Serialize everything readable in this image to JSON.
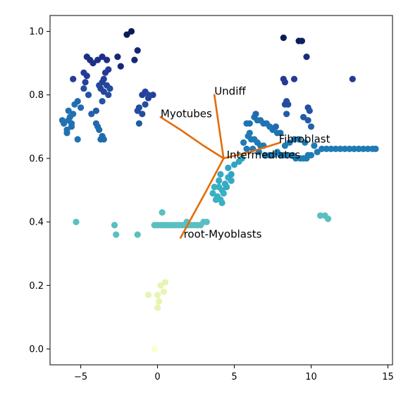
{
  "chart_data": {
    "type": "scatter",
    "title": "",
    "xlabel": "",
    "ylabel": "",
    "xlim": [
      -7.0,
      15.3
    ],
    "ylim": [
      -0.05,
      1.05
    ],
    "grid": false,
    "legend": "none",
    "x_ticks": [
      {
        "value": -5,
        "label": "−5"
      },
      {
        "value": 0,
        "label": "0"
      },
      {
        "value": 5,
        "label": "5"
      },
      {
        "value": 10,
        "label": "10"
      },
      {
        "value": 15,
        "label": "15"
      }
    ],
    "y_ticks": [
      {
        "value": 0.0,
        "label": "0.0"
      },
      {
        "value": 0.2,
        "label": "0.2"
      },
      {
        "value": 0.4,
        "label": "0.4"
      },
      {
        "value": 0.6,
        "label": "0.6"
      },
      {
        "value": 0.8,
        "label": "0.8"
      },
      {
        "value": 1.0,
        "label": "1.0"
      }
    ],
    "colormap": {
      "name": "YlGnBu",
      "range": [
        0,
        1
      ],
      "stops": [
        "#ffffd9",
        "#edf8b1",
        "#c7e9b4",
        "#7fcdbb",
        "#41b6c4",
        "#1d91c0",
        "#225ea8",
        "#253494",
        "#081d58"
      ]
    },
    "points": [
      {
        "x": -5.8,
        "y": 0.72,
        "v": 0.7
      },
      {
        "x": -6.1,
        "y": 0.71,
        "v": 0.7
      },
      {
        "x": -5.9,
        "y": 0.69,
        "v": 0.7
      },
      {
        "x": -5.6,
        "y": 0.7,
        "v": 0.7
      },
      {
        "x": -5.7,
        "y": 0.73,
        "v": 0.7
      },
      {
        "x": -5.5,
        "y": 0.74,
        "v": 0.7
      },
      {
        "x": -5.9,
        "y": 0.68,
        "v": 0.7
      },
      {
        "x": -5.4,
        "y": 0.77,
        "v": 0.7
      },
      {
        "x": -5.2,
        "y": 0.78,
        "v": 0.72
      },
      {
        "x": -5.0,
        "y": 0.76,
        "v": 0.72
      },
      {
        "x": -5.2,
        "y": 0.66,
        "v": 0.7
      },
      {
        "x": -5.8,
        "y": 0.75,
        "v": 0.7
      },
      {
        "x": -6.2,
        "y": 0.72,
        "v": 0.7
      },
      {
        "x": -5.6,
        "y": 0.71,
        "v": 0.7
      },
      {
        "x": -5.5,
        "y": 0.85,
        "v": 0.85
      },
      {
        "x": -4.8,
        "y": 0.82,
        "v": 0.8
      },
      {
        "x": -4.5,
        "y": 0.8,
        "v": 0.78
      },
      {
        "x": -4.7,
        "y": 0.84,
        "v": 0.84
      },
      {
        "x": -4.6,
        "y": 0.86,
        "v": 0.86
      },
      {
        "x": -4.8,
        "y": 0.87,
        "v": 0.86
      },
      {
        "x": -4.6,
        "y": 0.92,
        "v": 0.9
      },
      {
        "x": -4.4,
        "y": 0.91,
        "v": 0.9
      },
      {
        "x": -4.2,
        "y": 0.9,
        "v": 0.9
      },
      {
        "x": -3.9,
        "y": 0.91,
        "v": 0.9
      },
      {
        "x": -3.6,
        "y": 0.92,
        "v": 0.9
      },
      {
        "x": -3.3,
        "y": 0.91,
        "v": 0.9
      },
      {
        "x": -3.4,
        "y": 0.87,
        "v": 0.86
      },
      {
        "x": -3.2,
        "y": 0.88,
        "v": 0.86
      },
      {
        "x": -3.5,
        "y": 0.85,
        "v": 0.84
      },
      {
        "x": -3.6,
        "y": 0.84,
        "v": 0.84
      },
      {
        "x": -3.8,
        "y": 0.83,
        "v": 0.82
      },
      {
        "x": -3.7,
        "y": 0.82,
        "v": 0.82
      },
      {
        "x": -3.5,
        "y": 0.81,
        "v": 0.82
      },
      {
        "x": -3.3,
        "y": 0.83,
        "v": 0.82
      },
      {
        "x": -3.2,
        "y": 0.8,
        "v": 0.8
      },
      {
        "x": -3.1,
        "y": 0.82,
        "v": 0.8
      },
      {
        "x": -3.6,
        "y": 0.78,
        "v": 0.78
      },
      {
        "x": -4.0,
        "y": 0.75,
        "v": 0.76
      },
      {
        "x": -4.3,
        "y": 0.74,
        "v": 0.74
      },
      {
        "x": -3.9,
        "y": 0.7,
        "v": 0.72
      },
      {
        "x": -3.8,
        "y": 0.69,
        "v": 0.72
      },
      {
        "x": -3.6,
        "y": 0.67,
        "v": 0.72
      },
      {
        "x": -3.7,
        "y": 0.66,
        "v": 0.72
      },
      {
        "x": -3.5,
        "y": 0.66,
        "v": 0.72
      },
      {
        "x": -4.0,
        "y": 0.71,
        "v": 0.72
      },
      {
        "x": -2.0,
        "y": 0.99,
        "v": 1.0
      },
      {
        "x": -1.7,
        "y": 1.0,
        "v": 1.0
      },
      {
        "x": -1.5,
        "y": 0.91,
        "v": 0.94
      },
      {
        "x": -1.3,
        "y": 0.94,
        "v": 0.94
      },
      {
        "x": -2.6,
        "y": 0.92,
        "v": 0.94
      },
      {
        "x": -2.4,
        "y": 0.89,
        "v": 0.94
      },
      {
        "x": -1.0,
        "y": 0.8,
        "v": 0.84
      },
      {
        "x": -0.8,
        "y": 0.81,
        "v": 0.84
      },
      {
        "x": -0.6,
        "y": 0.79,
        "v": 0.84
      },
      {
        "x": -0.3,
        "y": 0.8,
        "v": 0.84
      },
      {
        "x": -1.2,
        "y": 0.76,
        "v": 0.8
      },
      {
        "x": -1.0,
        "y": 0.74,
        "v": 0.8
      },
      {
        "x": -0.8,
        "y": 0.77,
        "v": 0.8
      },
      {
        "x": -1.3,
        "y": 0.75,
        "v": 0.8
      },
      {
        "x": -1.2,
        "y": 0.71,
        "v": 0.76
      },
      {
        "x": -0.6,
        "y": 0.8,
        "v": 0.82
      },
      {
        "x": -5.3,
        "y": 0.4,
        "v": 0.45
      },
      {
        "x": -2.8,
        "y": 0.39,
        "v": 0.45
      },
      {
        "x": -2.7,
        "y": 0.36,
        "v": 0.45
      },
      {
        "x": -1.3,
        "y": 0.36,
        "v": 0.45
      },
      {
        "x": -0.2,
        "y": 0.39,
        "v": 0.45
      },
      {
        "x": 0.0,
        "y": 0.39,
        "v": 0.45
      },
      {
        "x": 0.2,
        "y": 0.39,
        "v": 0.45
      },
      {
        "x": 0.4,
        "y": 0.39,
        "v": 0.45
      },
      {
        "x": 0.6,
        "y": 0.39,
        "v": 0.45
      },
      {
        "x": 0.8,
        "y": 0.39,
        "v": 0.45
      },
      {
        "x": 1.0,
        "y": 0.39,
        "v": 0.45
      },
      {
        "x": 1.2,
        "y": 0.39,
        "v": 0.45
      },
      {
        "x": 1.4,
        "y": 0.39,
        "v": 0.45
      },
      {
        "x": 1.6,
        "y": 0.39,
        "v": 0.45
      },
      {
        "x": 1.8,
        "y": 0.39,
        "v": 0.45
      },
      {
        "x": 2.0,
        "y": 0.39,
        "v": 0.45
      },
      {
        "x": 2.2,
        "y": 0.39,
        "v": 0.45
      },
      {
        "x": 2.4,
        "y": 0.39,
        "v": 0.45
      },
      {
        "x": 2.6,
        "y": 0.39,
        "v": 0.45
      },
      {
        "x": 2.8,
        "y": 0.39,
        "v": 0.45
      },
      {
        "x": 3.0,
        "y": 0.4,
        "v": 0.45
      },
      {
        "x": 3.2,
        "y": 0.4,
        "v": 0.45
      },
      {
        "x": 0.3,
        "y": 0.43,
        "v": 0.45
      },
      {
        "x": 1.9,
        "y": 0.4,
        "v": 0.45
      },
      {
        "x": 10.6,
        "y": 0.42,
        "v": 0.45
      },
      {
        "x": 10.9,
        "y": 0.42,
        "v": 0.45
      },
      {
        "x": 11.1,
        "y": 0.41,
        "v": 0.45
      },
      {
        "x": 3.6,
        "y": 0.49,
        "v": 0.52
      },
      {
        "x": 3.9,
        "y": 0.48,
        "v": 0.52
      },
      {
        "x": 4.1,
        "y": 0.47,
        "v": 0.52
      },
      {
        "x": 4.3,
        "y": 0.49,
        "v": 0.52
      },
      {
        "x": 4.0,
        "y": 0.51,
        "v": 0.52
      },
      {
        "x": 4.4,
        "y": 0.52,
        "v": 0.54
      },
      {
        "x": 4.6,
        "y": 0.54,
        "v": 0.54
      },
      {
        "x": 4.8,
        "y": 0.55,
        "v": 0.56
      },
      {
        "x": 4.2,
        "y": 0.5,
        "v": 0.52
      },
      {
        "x": 3.7,
        "y": 0.51,
        "v": 0.52
      },
      {
        "x": 4.5,
        "y": 0.51,
        "v": 0.54
      },
      {
        "x": 4.8,
        "y": 0.53,
        "v": 0.54
      },
      {
        "x": 4.2,
        "y": 0.46,
        "v": 0.52
      },
      {
        "x": 4.6,
        "y": 0.57,
        "v": 0.56
      },
      {
        "x": 5.0,
        "y": 0.58,
        "v": 0.56
      },
      {
        "x": 5.3,
        "y": 0.59,
        "v": 0.56
      },
      {
        "x": 4.0,
        "y": 0.53,
        "v": 0.54
      },
      {
        "x": 3.8,
        "y": 0.47,
        "v": 0.52
      },
      {
        "x": 4.1,
        "y": 0.55,
        "v": 0.54
      },
      {
        "x": 5.5,
        "y": 0.6,
        "v": 0.56
      },
      {
        "x": 0.5,
        "y": 0.21,
        "v": 0.15
      },
      {
        "x": 0.2,
        "y": 0.2,
        "v": 0.15
      },
      {
        "x": -0.6,
        "y": 0.17,
        "v": 0.15
      },
      {
        "x": 0.0,
        "y": 0.17,
        "v": 0.15
      },
      {
        "x": 0.4,
        "y": 0.18,
        "v": 0.15
      },
      {
        "x": 0.1,
        "y": 0.15,
        "v": 0.15
      },
      {
        "x": 0.0,
        "y": 0.13,
        "v": 0.15
      },
      {
        "x": -0.2,
        "y": 0.0,
        "v": 0.02
      },
      {
        "x": 5.8,
        "y": 0.71,
        "v": 0.7
      },
      {
        "x": 6.0,
        "y": 0.71,
        "v": 0.7
      },
      {
        "x": 6.3,
        "y": 0.73,
        "v": 0.7
      },
      {
        "x": 6.5,
        "y": 0.72,
        "v": 0.7
      },
      {
        "x": 6.7,
        "y": 0.72,
        "v": 0.7
      },
      {
        "x": 6.9,
        "y": 0.71,
        "v": 0.7
      },
      {
        "x": 7.1,
        "y": 0.71,
        "v": 0.7
      },
      {
        "x": 7.3,
        "y": 0.7,
        "v": 0.7
      },
      {
        "x": 7.5,
        "y": 0.69,
        "v": 0.7
      },
      {
        "x": 7.8,
        "y": 0.68,
        "v": 0.7
      },
      {
        "x": 8.0,
        "y": 0.68,
        "v": 0.7
      },
      {
        "x": 6.0,
        "y": 0.68,
        "v": 0.68
      },
      {
        "x": 5.9,
        "y": 0.67,
        "v": 0.68
      },
      {
        "x": 6.1,
        "y": 0.66,
        "v": 0.68
      },
      {
        "x": 6.3,
        "y": 0.66,
        "v": 0.68
      },
      {
        "x": 6.5,
        "y": 0.65,
        "v": 0.68
      },
      {
        "x": 6.7,
        "y": 0.64,
        "v": 0.68
      },
      {
        "x": 6.9,
        "y": 0.64,
        "v": 0.68
      },
      {
        "x": 6.6,
        "y": 0.62,
        "v": 0.68
      },
      {
        "x": 7.0,
        "y": 0.61,
        "v": 0.68
      },
      {
        "x": 7.3,
        "y": 0.61,
        "v": 0.68
      },
      {
        "x": 7.5,
        "y": 0.61,
        "v": 0.68
      },
      {
        "x": 7.8,
        "y": 0.62,
        "v": 0.68
      },
      {
        "x": 8.0,
        "y": 0.61,
        "v": 0.68
      },
      {
        "x": 8.2,
        "y": 0.61,
        "v": 0.68
      },
      {
        "x": 8.5,
        "y": 0.61,
        "v": 0.68
      },
      {
        "x": 8.8,
        "y": 0.61,
        "v": 0.68
      },
      {
        "x": 9.0,
        "y": 0.6,
        "v": 0.68
      },
      {
        "x": 9.3,
        "y": 0.6,
        "v": 0.68
      },
      {
        "x": 9.5,
        "y": 0.6,
        "v": 0.68
      },
      {
        "x": 9.8,
        "y": 0.61,
        "v": 0.68
      },
      {
        "x": 10.0,
        "y": 0.61,
        "v": 0.68
      },
      {
        "x": 10.4,
        "y": 0.62,
        "v": 0.68
      },
      {
        "x": 10.7,
        "y": 0.63,
        "v": 0.68
      },
      {
        "x": 11.0,
        "y": 0.63,
        "v": 0.68
      },
      {
        "x": 11.3,
        "y": 0.63,
        "v": 0.68
      },
      {
        "x": 11.6,
        "y": 0.63,
        "v": 0.68
      },
      {
        "x": 11.9,
        "y": 0.63,
        "v": 0.68
      },
      {
        "x": 12.2,
        "y": 0.63,
        "v": 0.68
      },
      {
        "x": 12.5,
        "y": 0.63,
        "v": 0.68
      },
      {
        "x": 12.8,
        "y": 0.63,
        "v": 0.68
      },
      {
        "x": 13.1,
        "y": 0.63,
        "v": 0.68
      },
      {
        "x": 13.4,
        "y": 0.63,
        "v": 0.68
      },
      {
        "x": 13.7,
        "y": 0.63,
        "v": 0.68
      },
      {
        "x": 14.0,
        "y": 0.63,
        "v": 0.68
      },
      {
        "x": 14.2,
        "y": 0.63,
        "v": 0.68
      },
      {
        "x": 8.3,
        "y": 0.64,
        "v": 0.68
      },
      {
        "x": 8.6,
        "y": 0.65,
        "v": 0.68
      },
      {
        "x": 8.9,
        "y": 0.66,
        "v": 0.68
      },
      {
        "x": 9.2,
        "y": 0.66,
        "v": 0.68
      },
      {
        "x": 9.6,
        "y": 0.65,
        "v": 0.68
      },
      {
        "x": 10.2,
        "y": 0.64,
        "v": 0.68
      },
      {
        "x": 5.6,
        "y": 0.65,
        "v": 0.68
      },
      {
        "x": 5.8,
        "y": 0.63,
        "v": 0.68
      },
      {
        "x": 6.2,
        "y": 0.63,
        "v": 0.68
      },
      {
        "x": 9.7,
        "y": 0.6,
        "v": 0.68
      },
      {
        "x": 6.4,
        "y": 0.74,
        "v": 0.72
      },
      {
        "x": 8.2,
        "y": 0.98,
        "v": 1.0
      },
      {
        "x": 9.2,
        "y": 0.97,
        "v": 1.0
      },
      {
        "x": 9.4,
        "y": 0.97,
        "v": 0.98
      },
      {
        "x": 9.7,
        "y": 0.92,
        "v": 0.92
      },
      {
        "x": 8.2,
        "y": 0.85,
        "v": 0.86
      },
      {
        "x": 8.3,
        "y": 0.84,
        "v": 0.86
      },
      {
        "x": 8.9,
        "y": 0.85,
        "v": 0.86
      },
      {
        "x": 12.7,
        "y": 0.85,
        "v": 0.86
      },
      {
        "x": 8.4,
        "y": 0.78,
        "v": 0.8
      },
      {
        "x": 8.5,
        "y": 0.77,
        "v": 0.8
      },
      {
        "x": 8.3,
        "y": 0.77,
        "v": 0.8
      },
      {
        "x": 9.8,
        "y": 0.76,
        "v": 0.8
      },
      {
        "x": 9.9,
        "y": 0.75,
        "v": 0.78
      },
      {
        "x": 9.8,
        "y": 0.72,
        "v": 0.76
      },
      {
        "x": 9.5,
        "y": 0.73,
        "v": 0.76
      },
      {
        "x": 10.0,
        "y": 0.7,
        "v": 0.74
      },
      {
        "x": 8.4,
        "y": 0.74,
        "v": 0.76
      },
      {
        "x": 7.7,
        "y": 0.7,
        "v": 0.72
      }
    ],
    "trajectory": {
      "color": "#e36c0a",
      "branches": [
        {
          "name": "Myotubes",
          "path": [
            [
              4.3,
              0.6
            ],
            [
              3.0,
              0.64
            ],
            [
              1.5,
              0.69
            ],
            [
              0.2,
              0.73
            ]
          ]
        },
        {
          "name": "Undiff",
          "path": [
            [
              4.3,
              0.6
            ],
            [
              3.7,
              0.8
            ]
          ]
        },
        {
          "name": "Fibroblast",
          "path": [
            [
              4.3,
              0.6
            ],
            [
              6.0,
              0.62
            ],
            [
              8.0,
              0.65
            ]
          ]
        },
        {
          "name": "root-Myoblasts",
          "path": [
            [
              4.3,
              0.6
            ],
            [
              3.2,
              0.5
            ],
            [
              1.5,
              0.35
            ]
          ]
        }
      ]
    },
    "annotations": [
      {
        "text": "Undiff",
        "x": 3.7,
        "y": 0.8
      },
      {
        "text": "Myotubes",
        "x": 0.2,
        "y": 0.73
      },
      {
        "text": "Fibroblast",
        "x": 7.9,
        "y": 0.65
      },
      {
        "text": "Intermediates",
        "x": 4.5,
        "y": 0.6
      },
      {
        "text": "root-Myoblasts",
        "x": 1.7,
        "y": 0.35
      }
    ]
  }
}
